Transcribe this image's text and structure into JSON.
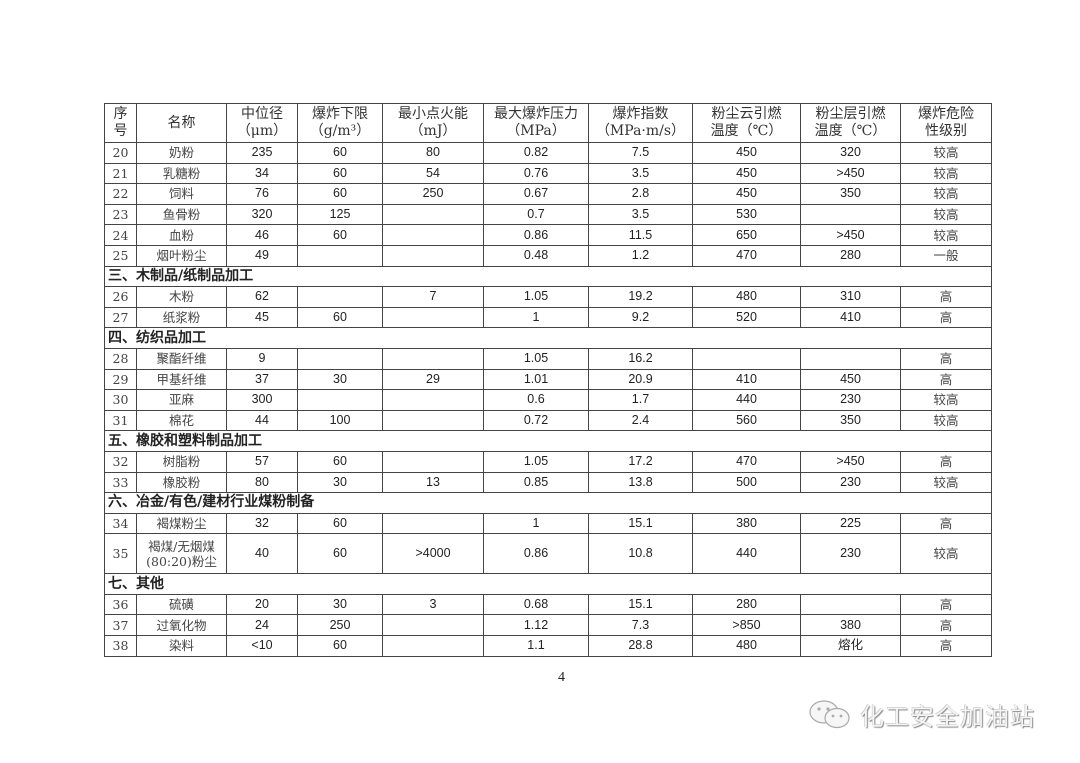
{
  "headers": [
    "序\n号",
    "名称",
    "中位径\n（μm）",
    "爆炸下限\n（g/m³）",
    "最小点火能\n（mJ）",
    "最大爆炸压力\n（MPa）",
    "爆炸指数\n（MPa·m/s）",
    "粉尘云引燃\n温度（℃）",
    "粉尘层引燃\n温度（℃）",
    "爆炸危险\n性级别"
  ],
  "rows": [
    {
      "cells": [
        "20",
        "奶粉",
        "235",
        "60",
        "80",
        "0.82",
        "7.5",
        "450",
        "320",
        "较高"
      ]
    },
    {
      "cells": [
        "21",
        "乳糖粉",
        "34",
        "60",
        "54",
        "0.76",
        "3.5",
        "450",
        ">450",
        "较高"
      ]
    },
    {
      "cells": [
        "22",
        "饲料",
        "76",
        "60",
        "250",
        "0.67",
        "2.8",
        "450",
        "350",
        "较高"
      ]
    },
    {
      "cells": [
        "23",
        "鱼骨粉",
        "320",
        "125",
        "",
        "0.7",
        "3.5",
        "530",
        "",
        "较高"
      ]
    },
    {
      "cells": [
        "24",
        "血粉",
        "46",
        "60",
        "",
        "0.86",
        "11.5",
        "650",
        ">450",
        "较高"
      ]
    },
    {
      "cells": [
        "25",
        "烟叶粉尘",
        "49",
        "",
        "",
        "0.48",
        "1.2",
        "470",
        "280",
        "一般"
      ]
    },
    {
      "section": "三、木制品/纸制品加工"
    },
    {
      "cells": [
        "26",
        "木粉",
        "62",
        "",
        "7",
        "1.05",
        "19.2",
        "480",
        "310",
        "高"
      ]
    },
    {
      "cells": [
        "27",
        "纸浆粉",
        "45",
        "60",
        "",
        "1",
        "9.2",
        "520",
        "410",
        "高"
      ]
    },
    {
      "section": "四、纺织品加工"
    },
    {
      "cells": [
        "28",
        "聚酯纤维",
        "9",
        "",
        "",
        "1.05",
        "16.2",
        "",
        "",
        "高"
      ]
    },
    {
      "cells": [
        "29",
        "甲基纤维",
        "37",
        "30",
        "29",
        "1.01",
        "20.9",
        "410",
        "450",
        "高"
      ]
    },
    {
      "cells": [
        "30",
        "亚麻",
        "300",
        "",
        "",
        "0.6",
        "1.7",
        "440",
        "230",
        "较高"
      ]
    },
    {
      "cells": [
        "31",
        "棉花",
        "44",
        "100",
        "",
        "0.72",
        "2.4",
        "560",
        "350",
        "较高"
      ]
    },
    {
      "section": "五、橡胶和塑料制品加工"
    },
    {
      "cells": [
        "32",
        "树脂粉",
        "57",
        "60",
        "",
        "1.05",
        "17.2",
        "470",
        ">450",
        "高"
      ]
    },
    {
      "cells": [
        "33",
        "橡胶粉",
        "80",
        "30",
        "13",
        "0.85",
        "13.8",
        "500",
        "230",
        "较高"
      ]
    },
    {
      "section": "六、冶金/有色/建材行业煤粉制备"
    },
    {
      "cells": [
        "34",
        "褐煤粉尘",
        "32",
        "60",
        "",
        "1",
        "15.1",
        "380",
        "225",
        "高"
      ]
    },
    {
      "cells": [
        "35",
        "褐煤/无烟煤\n(80:20)粉尘",
        "40",
        "60",
        ">4000",
        "0.86",
        "10.8",
        "440",
        "230",
        "较高"
      ],
      "tall": true
    },
    {
      "section": "七、其他"
    },
    {
      "cells": [
        "36",
        "硫磺",
        "20",
        "30",
        "3",
        "0.68",
        "15.1",
        "280",
        "",
        "高"
      ]
    },
    {
      "cells": [
        "37",
        "过氧化物",
        "24",
        "250",
        "",
        "1.12",
        "7.3",
        ">850",
        "380",
        "高"
      ]
    },
    {
      "cells": [
        "38",
        "染料",
        "<10",
        "60",
        "",
        "1.1",
        "28.8",
        "480",
        "熔化",
        "高"
      ]
    }
  ],
  "page_number": "4",
  "watermark": {
    "text": "化工安全加油站",
    "icon": "wechat-icon"
  }
}
